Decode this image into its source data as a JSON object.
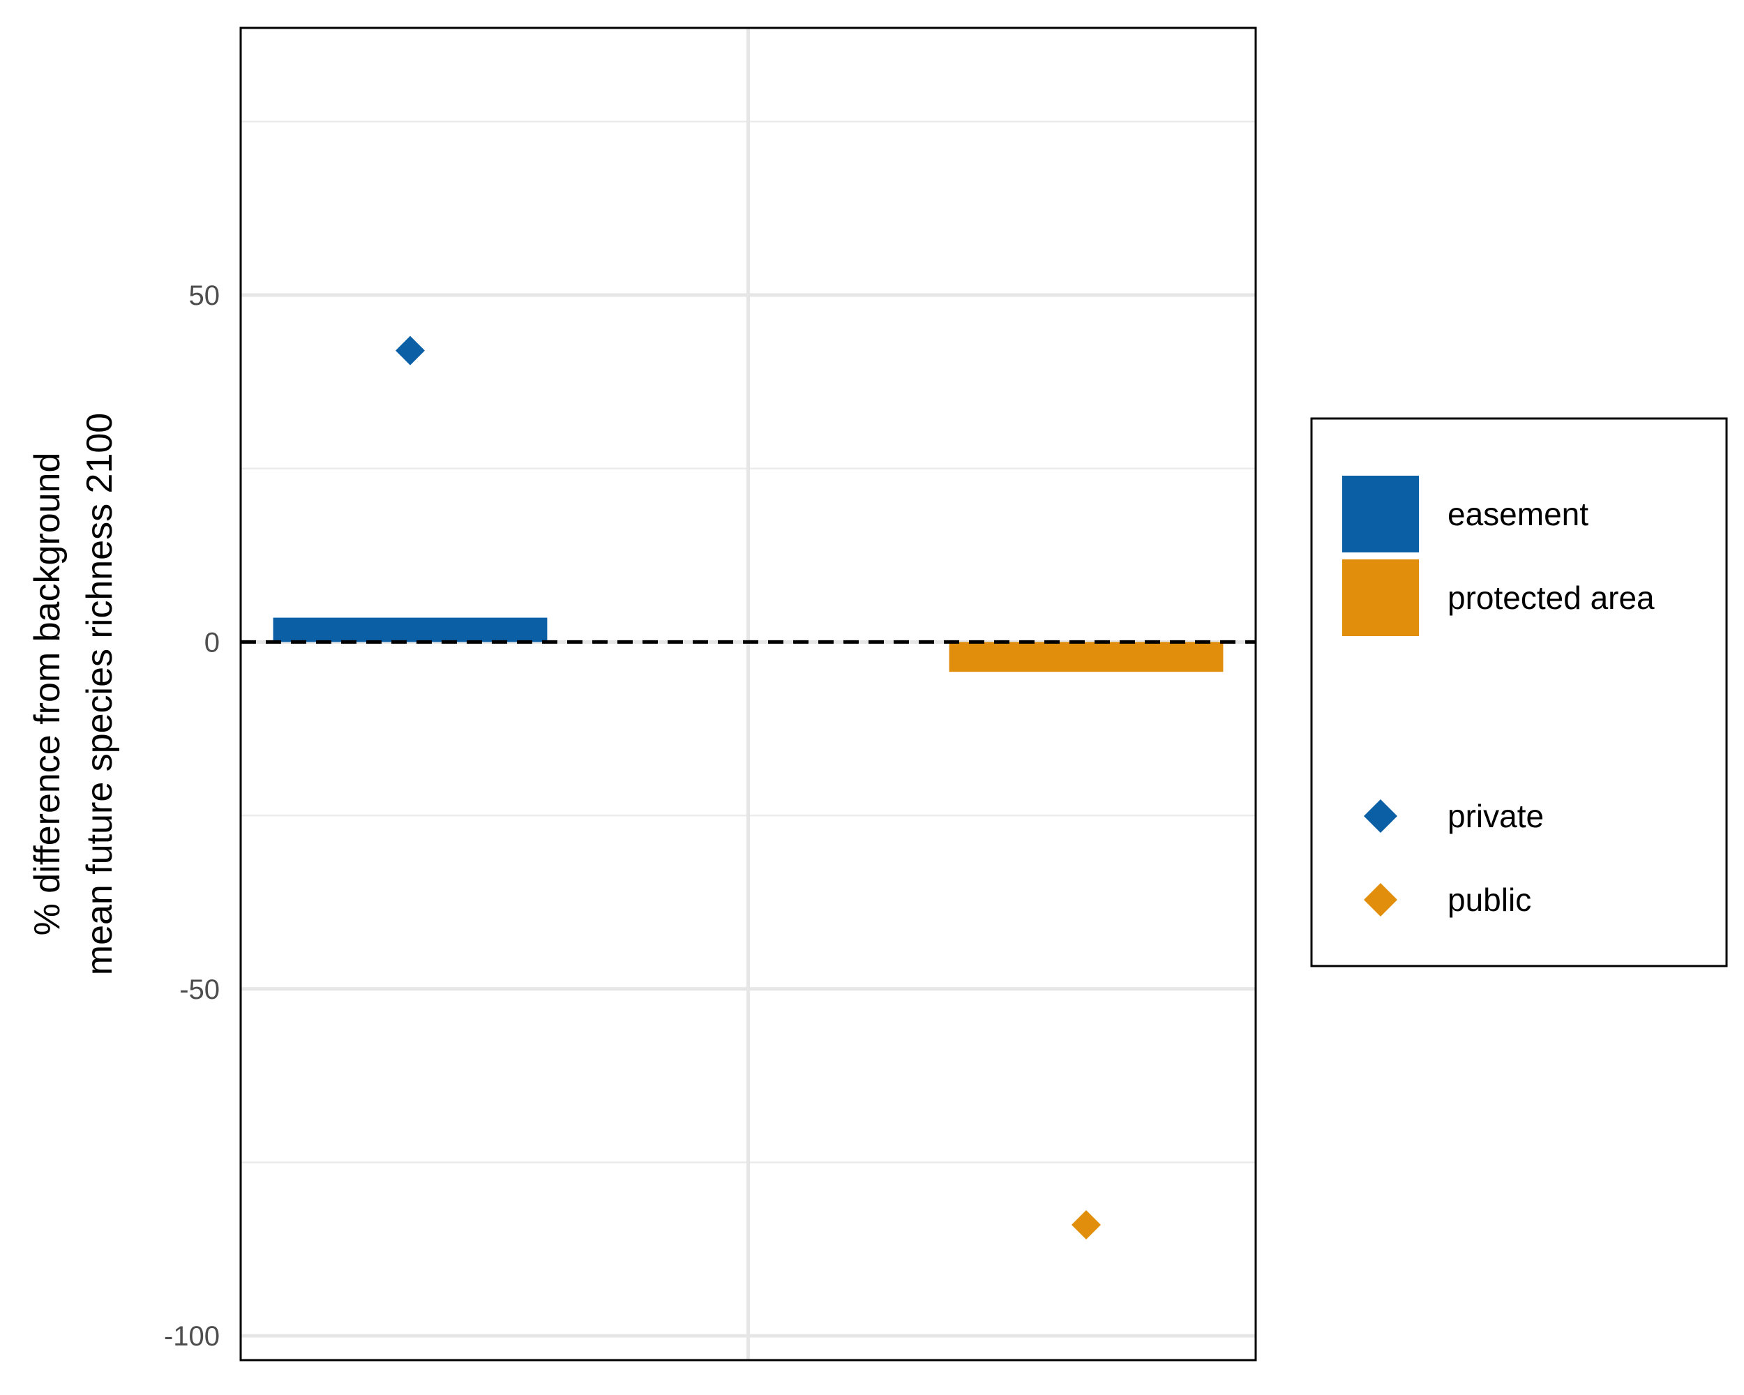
{
  "chart_data": {
    "type": "bar",
    "ylabel_lines": [
      "% difference from background",
      "mean future species richness 2100"
    ],
    "ylim": [
      -103.5,
      88.5
    ],
    "yticks": [
      50,
      0,
      -50,
      -100
    ],
    "ytick_labels": [
      "50",
      "0",
      "-50",
      "-100"
    ],
    "ygrid_minor": [
      75,
      25,
      -25,
      -75
    ],
    "grid": true,
    "categories": [
      "easement",
      "protected area"
    ],
    "series": [
      {
        "name": "easement",
        "kind": "bar",
        "category": "easement",
        "value": 3.5,
        "color": "#0B5FA5"
      },
      {
        "name": "protected area",
        "kind": "bar",
        "category": "protected area",
        "value": -4.3,
        "color": "#E08E0B"
      },
      {
        "name": "private",
        "kind": "point",
        "marker": "diamond",
        "category": "easement",
        "value": 42,
        "color": "#0B5FA5"
      },
      {
        "name": "public",
        "kind": "point",
        "marker": "diamond",
        "category": "protected area",
        "value": -84,
        "color": "#E08E0B"
      }
    ],
    "reference_line": {
      "value": 0,
      "style": "dashed",
      "color": "#000000"
    },
    "legend": {
      "position": "right",
      "fill_entries": [
        {
          "label": "easement",
          "color": "#0B5FA5"
        },
        {
          "label": "protected area",
          "color": "#E08E0B"
        }
      ],
      "shape_entries": [
        {
          "label": "private",
          "color": "#0B5FA5",
          "marker": "diamond-icon"
        },
        {
          "label": "public",
          "color": "#E08E0B",
          "marker": "diamond-icon"
        }
      ]
    }
  }
}
